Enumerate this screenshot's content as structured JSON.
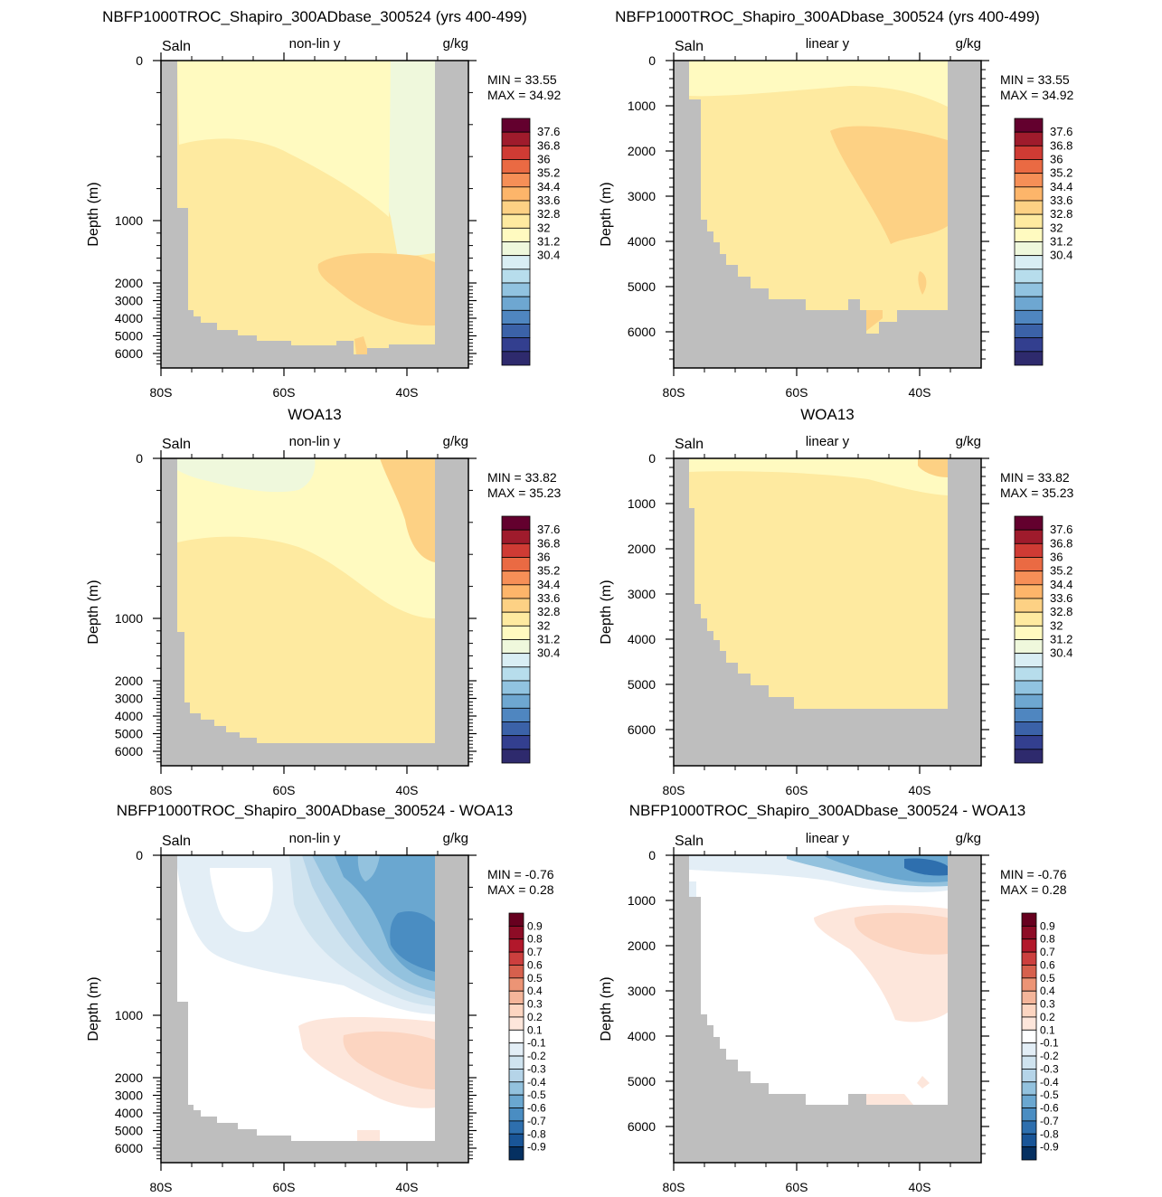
{
  "figure": {
    "row_titles": [
      "NBFP1000TROC_Shapiro_300ADbase_300524 (yrs 400-499)",
      "WOA13",
      "NBFP1000TROC_Shapiro_300ADbase_300524 - WOA13"
    ],
    "variable": "Saln",
    "units": "g/kg",
    "ylabel": "Depth (m)",
    "scale_labels": [
      "non-lin y",
      "linear y"
    ]
  },
  "chart_data": [
    {
      "type": "heatmap",
      "title": "NBFP1000TROC_Shapiro_300ADbase_300524 (yrs 400-499)",
      "left_label": "Saln",
      "center_label": "non-lin y",
      "right_label": "g/kg",
      "xlabel": "",
      "ylabel": "Depth (m)",
      "xticks": [
        "80S",
        "60S",
        "40S"
      ],
      "yticks": [
        "0",
        "1000",
        "2000",
        "3000",
        "4000",
        "5000",
        "6000"
      ],
      "min_label": "MIN =  33.55",
      "max_label": "MAX =  34.92",
      "colorbar_labels": [
        "37.6",
        "36.8",
        "36",
        "35.2",
        "34.4",
        "33.6",
        "32.8",
        "32",
        "31.2",
        "30.4"
      ]
    },
    {
      "type": "heatmap",
      "title": "NBFP1000TROC_Shapiro_300ADbase_300524 (yrs 400-499)",
      "left_label": "Saln",
      "center_label": "linear y",
      "right_label": "g/kg",
      "xlabel": "",
      "ylabel": "Depth (m)",
      "xticks": [
        "80S",
        "60S",
        "40S"
      ],
      "yticks": [
        "0",
        "1000",
        "2000",
        "3000",
        "4000",
        "5000",
        "6000"
      ],
      "min_label": "MIN =  33.55",
      "max_label": "MAX =  34.92",
      "colorbar_labels": [
        "37.6",
        "36.8",
        "36",
        "35.2",
        "34.4",
        "33.6",
        "32.8",
        "32",
        "31.2",
        "30.4"
      ]
    },
    {
      "type": "heatmap",
      "title": "WOA13",
      "left_label": "Saln",
      "center_label": "non-lin y",
      "right_label": "g/kg",
      "xlabel": "",
      "ylabel": "Depth (m)",
      "xticks": [
        "80S",
        "60S",
        "40S"
      ],
      "yticks": [
        "0",
        "1000",
        "2000",
        "3000",
        "4000",
        "5000",
        "6000"
      ],
      "min_label": "MIN =  33.82",
      "max_label": "MAX =  35.23",
      "colorbar_labels": [
        "37.6",
        "36.8",
        "36",
        "35.2",
        "34.4",
        "33.6",
        "32.8",
        "32",
        "31.2",
        "30.4"
      ]
    },
    {
      "type": "heatmap",
      "title": "WOA13",
      "left_label": "Saln",
      "center_label": "linear y",
      "right_label": "g/kg",
      "xlabel": "",
      "ylabel": "Depth (m)",
      "xticks": [
        "80S",
        "60S",
        "40S"
      ],
      "yticks": [
        "0",
        "1000",
        "2000",
        "3000",
        "4000",
        "5000",
        "6000"
      ],
      "min_label": "MIN =  33.82",
      "max_label": "MAX =  35.23",
      "colorbar_labels": [
        "37.6",
        "36.8",
        "36",
        "35.2",
        "34.4",
        "33.6",
        "32.8",
        "32",
        "31.2",
        "30.4"
      ]
    },
    {
      "type": "heatmap",
      "title": "NBFP1000TROC_Shapiro_300ADbase_300524 - WOA13",
      "left_label": "Saln",
      "center_label": "non-lin y",
      "right_label": "g/kg",
      "xlabel": "",
      "ylabel": "Depth (m)",
      "xticks": [
        "80S",
        "60S",
        "40S"
      ],
      "yticks": [
        "0",
        "1000",
        "2000",
        "3000",
        "4000",
        "5000",
        "6000"
      ],
      "min_label": "MIN =  -0.76",
      "max_label": "MAX =   0.28",
      "colorbar_labels": [
        "0.9",
        "0.8",
        "0.7",
        "0.6",
        "0.5",
        "0.4",
        "0.3",
        "0.2",
        "0.1",
        "-0.1",
        "-0.2",
        "-0.3",
        "-0.4",
        "-0.5",
        "-0.6",
        "-0.7",
        "-0.8",
        "-0.9"
      ]
    },
    {
      "type": "heatmap",
      "title": "NBFP1000TROC_Shapiro_300ADbase_300524 - WOA13",
      "left_label": "Saln",
      "center_label": "linear y",
      "right_label": "g/kg",
      "xlabel": "",
      "ylabel": "Depth (m)",
      "xticks": [
        "80S",
        "60S",
        "40S"
      ],
      "yticks": [
        "0",
        "1000",
        "2000",
        "3000",
        "4000",
        "5000",
        "6000"
      ],
      "min_label": "MIN =  -0.76",
      "max_label": "MAX =   0.28",
      "colorbar_labels": [
        "0.9",
        "0.8",
        "0.7",
        "0.6",
        "0.5",
        "0.4",
        "0.3",
        "0.2",
        "0.1",
        "-0.1",
        "-0.2",
        "-0.3",
        "-0.4",
        "-0.5",
        "-0.6",
        "-0.7",
        "-0.8",
        "-0.9"
      ]
    }
  ],
  "colors": {
    "land": "#bebebe",
    "abs_colorbar": [
      "#63002e",
      "#9f1b2c",
      "#cf3b34",
      "#ea6a43",
      "#f68f57",
      "#fdb56a",
      "#fdd184",
      "#feeaa0",
      "#fffac0",
      "#eff8dc",
      "#d9eef4",
      "#b7ddec",
      "#91c3e0",
      "#6ea7d1",
      "#4f86c0",
      "#3b62a8",
      "#333f8f",
      "#2e2a6d"
    ],
    "anom_colorbar": [
      "#67001f",
      "#8d0c26",
      "#b2182b",
      "#cc3f3e",
      "#d6604d",
      "#ec9475",
      "#f4b59a",
      "#fcd5c1",
      "#fde6db",
      "#ffffff",
      "#e3eef6",
      "#cfe3ef",
      "#b5d4e8",
      "#93c2de",
      "#6aa7d0",
      "#4a8dc2",
      "#2e6fae",
      "#195597",
      "#053061"
    ],
    "sal_fresh": "#d9eef4",
    "sal_low": "#eff8dc",
    "sal_mid": "#fffac0",
    "sal_base": "#feeaa0",
    "sal_high": "#fdd184",
    "anom_white": "#ffffff"
  }
}
